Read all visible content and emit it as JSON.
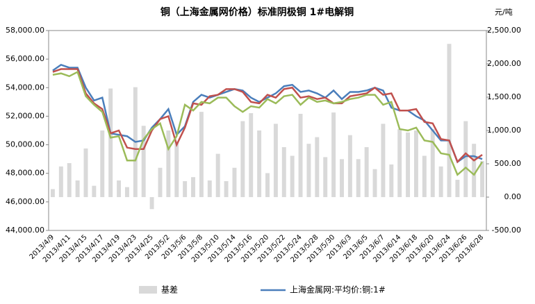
{
  "chart_data": {
    "type": "bar-line",
    "title": "铜（上海金属网价格）标准阴极铜 1#电解铜",
    "y2_unit": "元/吨",
    "categories": [
      "2013/4/9",
      null,
      "2013/4/11",
      null,
      "2013/4/15",
      null,
      "2013/4/17",
      null,
      "2013/4/19",
      null,
      "2013/4/23",
      null,
      "2013/4/25",
      null,
      "2013/5/2",
      null,
      "2013/5/6",
      null,
      "2013/5/8",
      null,
      "2013/5/10",
      null,
      "2013/5/14",
      null,
      "2013/5/16",
      null,
      "2013/5/20",
      null,
      "2013/5/22",
      null,
      "2013/5/24",
      null,
      "2013/5/28",
      null,
      "2013/5/30",
      null,
      "2013/6/3",
      null,
      "2013/6/5",
      null,
      "2013/6/7",
      null,
      "2013/6/14",
      null,
      "2013/6/18",
      null,
      "2013/6/20",
      null,
      "2013/6/24",
      null,
      "2013/6/26",
      null,
      "2013/6/28"
    ],
    "series": [
      {
        "name": "基差",
        "kind": "bar",
        "axis": "y2",
        "color": "#d9d9d9",
        "values": [
          120,
          460,
          510,
          250,
          730,
          170,
          1000,
          1630,
          250,
          150,
          1650,
          1070,
          -180,
          440,
          1000,
          830,
          240,
          300,
          1280,
          250,
          650,
          240,
          440,
          1140,
          1260,
          1000,
          360,
          1100,
          750,
          620,
          1250,
          800,
          900,
          600,
          1270,
          570,
          930,
          570,
          750,
          420,
          1100,
          490,
          1020,
          970,
          1000,
          620,
          1020,
          460,
          2300,
          260,
          1140,
          800,
          540
        ]
      },
      {
        "name": "上海金属网:平均价:铜:1#",
        "kind": "line",
        "color": "#4a7ebb",
        "values": [
          55200,
          55600,
          55400,
          55400,
          54000,
          53100,
          53300,
          50800,
          50700,
          50600,
          50200,
          50300,
          51200,
          51800,
          52500,
          50700,
          51300,
          53000,
          53500,
          53300,
          53500,
          53700,
          53900,
          53800,
          53300,
          53000,
          53300,
          53600,
          54100,
          54200,
          53700,
          53800,
          53600,
          53300,
          53800,
          53200,
          53700,
          53700,
          53800,
          54000,
          53800,
          52600,
          52400,
          52400,
          52000,
          51700,
          51000,
          50300,
          50300,
          48800,
          49200,
          49200,
          49000
        ]
      },
      {
        "kind": "line",
        "color": "#c0504d",
        "values": [
          55100,
          55300,
          55300,
          55300,
          53600,
          52900,
          52500,
          50800,
          51000,
          49800,
          49700,
          49700,
          51000,
          51800,
          52000,
          50000,
          51200,
          52900,
          52800,
          53400,
          53500,
          53900,
          53900,
          53700,
          53000,
          52900,
          53500,
          53300,
          53900,
          54000,
          53300,
          53400,
          53200,
          53300,
          52900,
          52900,
          53400,
          53500,
          53600,
          54000,
          53500,
          53600,
          52400,
          52400,
          52500,
          51600,
          51500,
          50400,
          50300,
          48800,
          49400,
          48900,
          49300
        ]
      },
      {
        "kind": "line",
        "color": "#9bbb59",
        "values": [
          54900,
          55000,
          54800,
          55100,
          53400,
          52800,
          52300,
          50500,
          50600,
          48900,
          48900,
          50400,
          51100,
          51500,
          49700,
          50600,
          52800,
          52400,
          53000,
          52900,
          53300,
          53300,
          52700,
          52300,
          52700,
          52600,
          53200,
          52900,
          53400,
          53500,
          52800,
          53300,
          53000,
          53100,
          52900,
          53000,
          53200,
          53300,
          53500,
          53500,
          52800,
          53000,
          51100,
          51000,
          51200,
          50300,
          50200,
          49400,
          49300,
          47900,
          48400,
          47900,
          48800
        ]
      }
    ],
    "ylim": [
      44000,
      58000
    ],
    "yticks": [
      {
        "value": 44000,
        "label": "44,000.00"
      },
      {
        "value": 46000,
        "label": "46,000.00"
      },
      {
        "value": 48000,
        "label": "48,000.00"
      },
      {
        "value": 50000,
        "label": "50,000.00"
      },
      {
        "value": 52000,
        "label": "52,000.00"
      },
      {
        "value": 54000,
        "label": "54,000.00"
      },
      {
        "value": 56000,
        "label": "56,000.00"
      },
      {
        "value": 58000,
        "label": "58,000.00"
      }
    ],
    "y2lim": [
      -500,
      2500
    ],
    "y2ticks": [
      {
        "value": -500,
        "label": "-500.00"
      },
      {
        "value": 0,
        "label": "0.00"
      },
      {
        "value": 500,
        "label": "500.00"
      },
      {
        "value": 1000,
        "label": "1,000.00"
      },
      {
        "value": 1500,
        "label": "1,500.00"
      },
      {
        "value": 2000,
        "label": "2,000.00"
      },
      {
        "value": 2500,
        "label": "2,500.00"
      }
    ]
  }
}
